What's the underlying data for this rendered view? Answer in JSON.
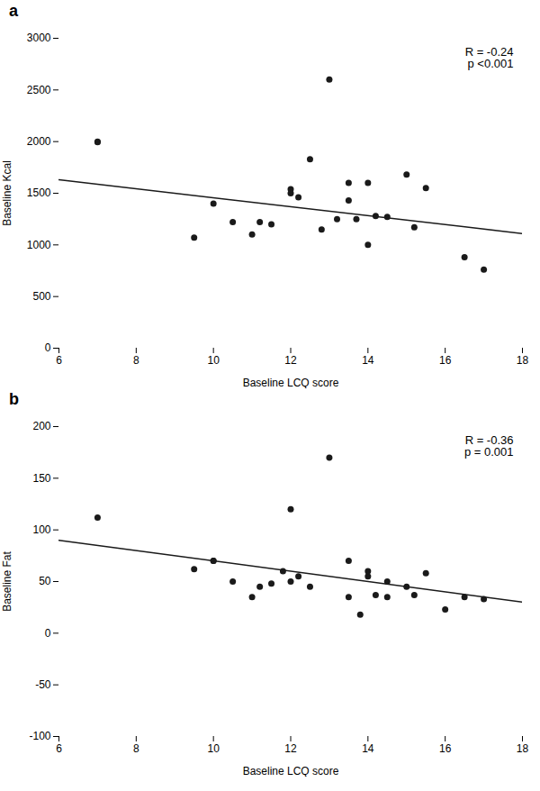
{
  "chart_data": [
    {
      "type": "scatter",
      "title": "a",
      "xlabel": "Baseline LCQ score",
      "ylabel": "Baseline Kcal",
      "xlim": [
        6,
        18
      ],
      "ylim": [
        0,
        3000
      ],
      "xticks": [
        6,
        8,
        10,
        12,
        14,
        16,
        18
      ],
      "yticks": [
        0,
        500,
        1000,
        1500,
        2000,
        2500,
        3000
      ],
      "grid": false,
      "annotation": "R = -0.24\np <0.001",
      "series": [
        {
          "type": "scatter",
          "marker": "circle",
          "color": "#1a1a1a",
          "x": [
            7,
            7,
            9.5,
            10,
            10.5,
            11,
            11.2,
            11.5,
            12,
            12,
            12.2,
            12.5,
            12.8,
            13,
            13.2,
            13.5,
            13.5,
            13.7,
            14,
            14,
            14.2,
            14.5,
            15,
            15.2,
            15.5,
            16.5,
            17
          ],
          "values": [
            2000,
            1995,
            1070,
            1400,
            1220,
            1100,
            1220,
            1200,
            1540,
            1500,
            1460,
            1830,
            1150,
            2600,
            1250,
            1600,
            1430,
            1250,
            1000,
            1600,
            1280,
            1270,
            1680,
            1170,
            1550,
            880,
            760
          ]
        },
        {
          "type": "line",
          "line_style": "solid",
          "color": "#1a1a1a",
          "x": [
            6,
            18
          ],
          "values": [
            1630,
            1110
          ]
        }
      ]
    },
    {
      "type": "scatter",
      "title": "b",
      "xlabel": "Baseline LCQ score",
      "ylabel": "Baseline Fat",
      "xlim": [
        6,
        18
      ],
      "ylim": [
        -100,
        200
      ],
      "xticks": [
        6,
        8,
        10,
        12,
        14,
        16,
        18
      ],
      "yticks": [
        -100,
        -50,
        0,
        50,
        100,
        150,
        200
      ],
      "grid": false,
      "annotation": "R = -0.36\np = 0.001",
      "series": [
        {
          "type": "scatter",
          "marker": "circle",
          "color": "#1a1a1a",
          "x": [
            7,
            9.5,
            10,
            10,
            10.5,
            11,
            11.2,
            11.5,
            11.8,
            12,
            12,
            12.2,
            12.5,
            13,
            13.5,
            13.5,
            13.8,
            14,
            14,
            14.2,
            14.5,
            14.5,
            15,
            15.2,
            15.5,
            16,
            16.5,
            17
          ],
          "values": [
            112,
            62,
            70,
            70,
            50,
            35,
            45,
            48,
            60,
            120,
            50,
            55,
            45,
            170,
            70,
            35,
            18,
            55,
            60,
            37,
            35,
            50,
            45,
            37,
            58,
            23,
            35,
            33
          ]
        },
        {
          "type": "line",
          "line_style": "solid",
          "color": "#1a1a1a",
          "x": [
            6,
            18
          ],
          "values": [
            90,
            30
          ]
        }
      ]
    }
  ]
}
